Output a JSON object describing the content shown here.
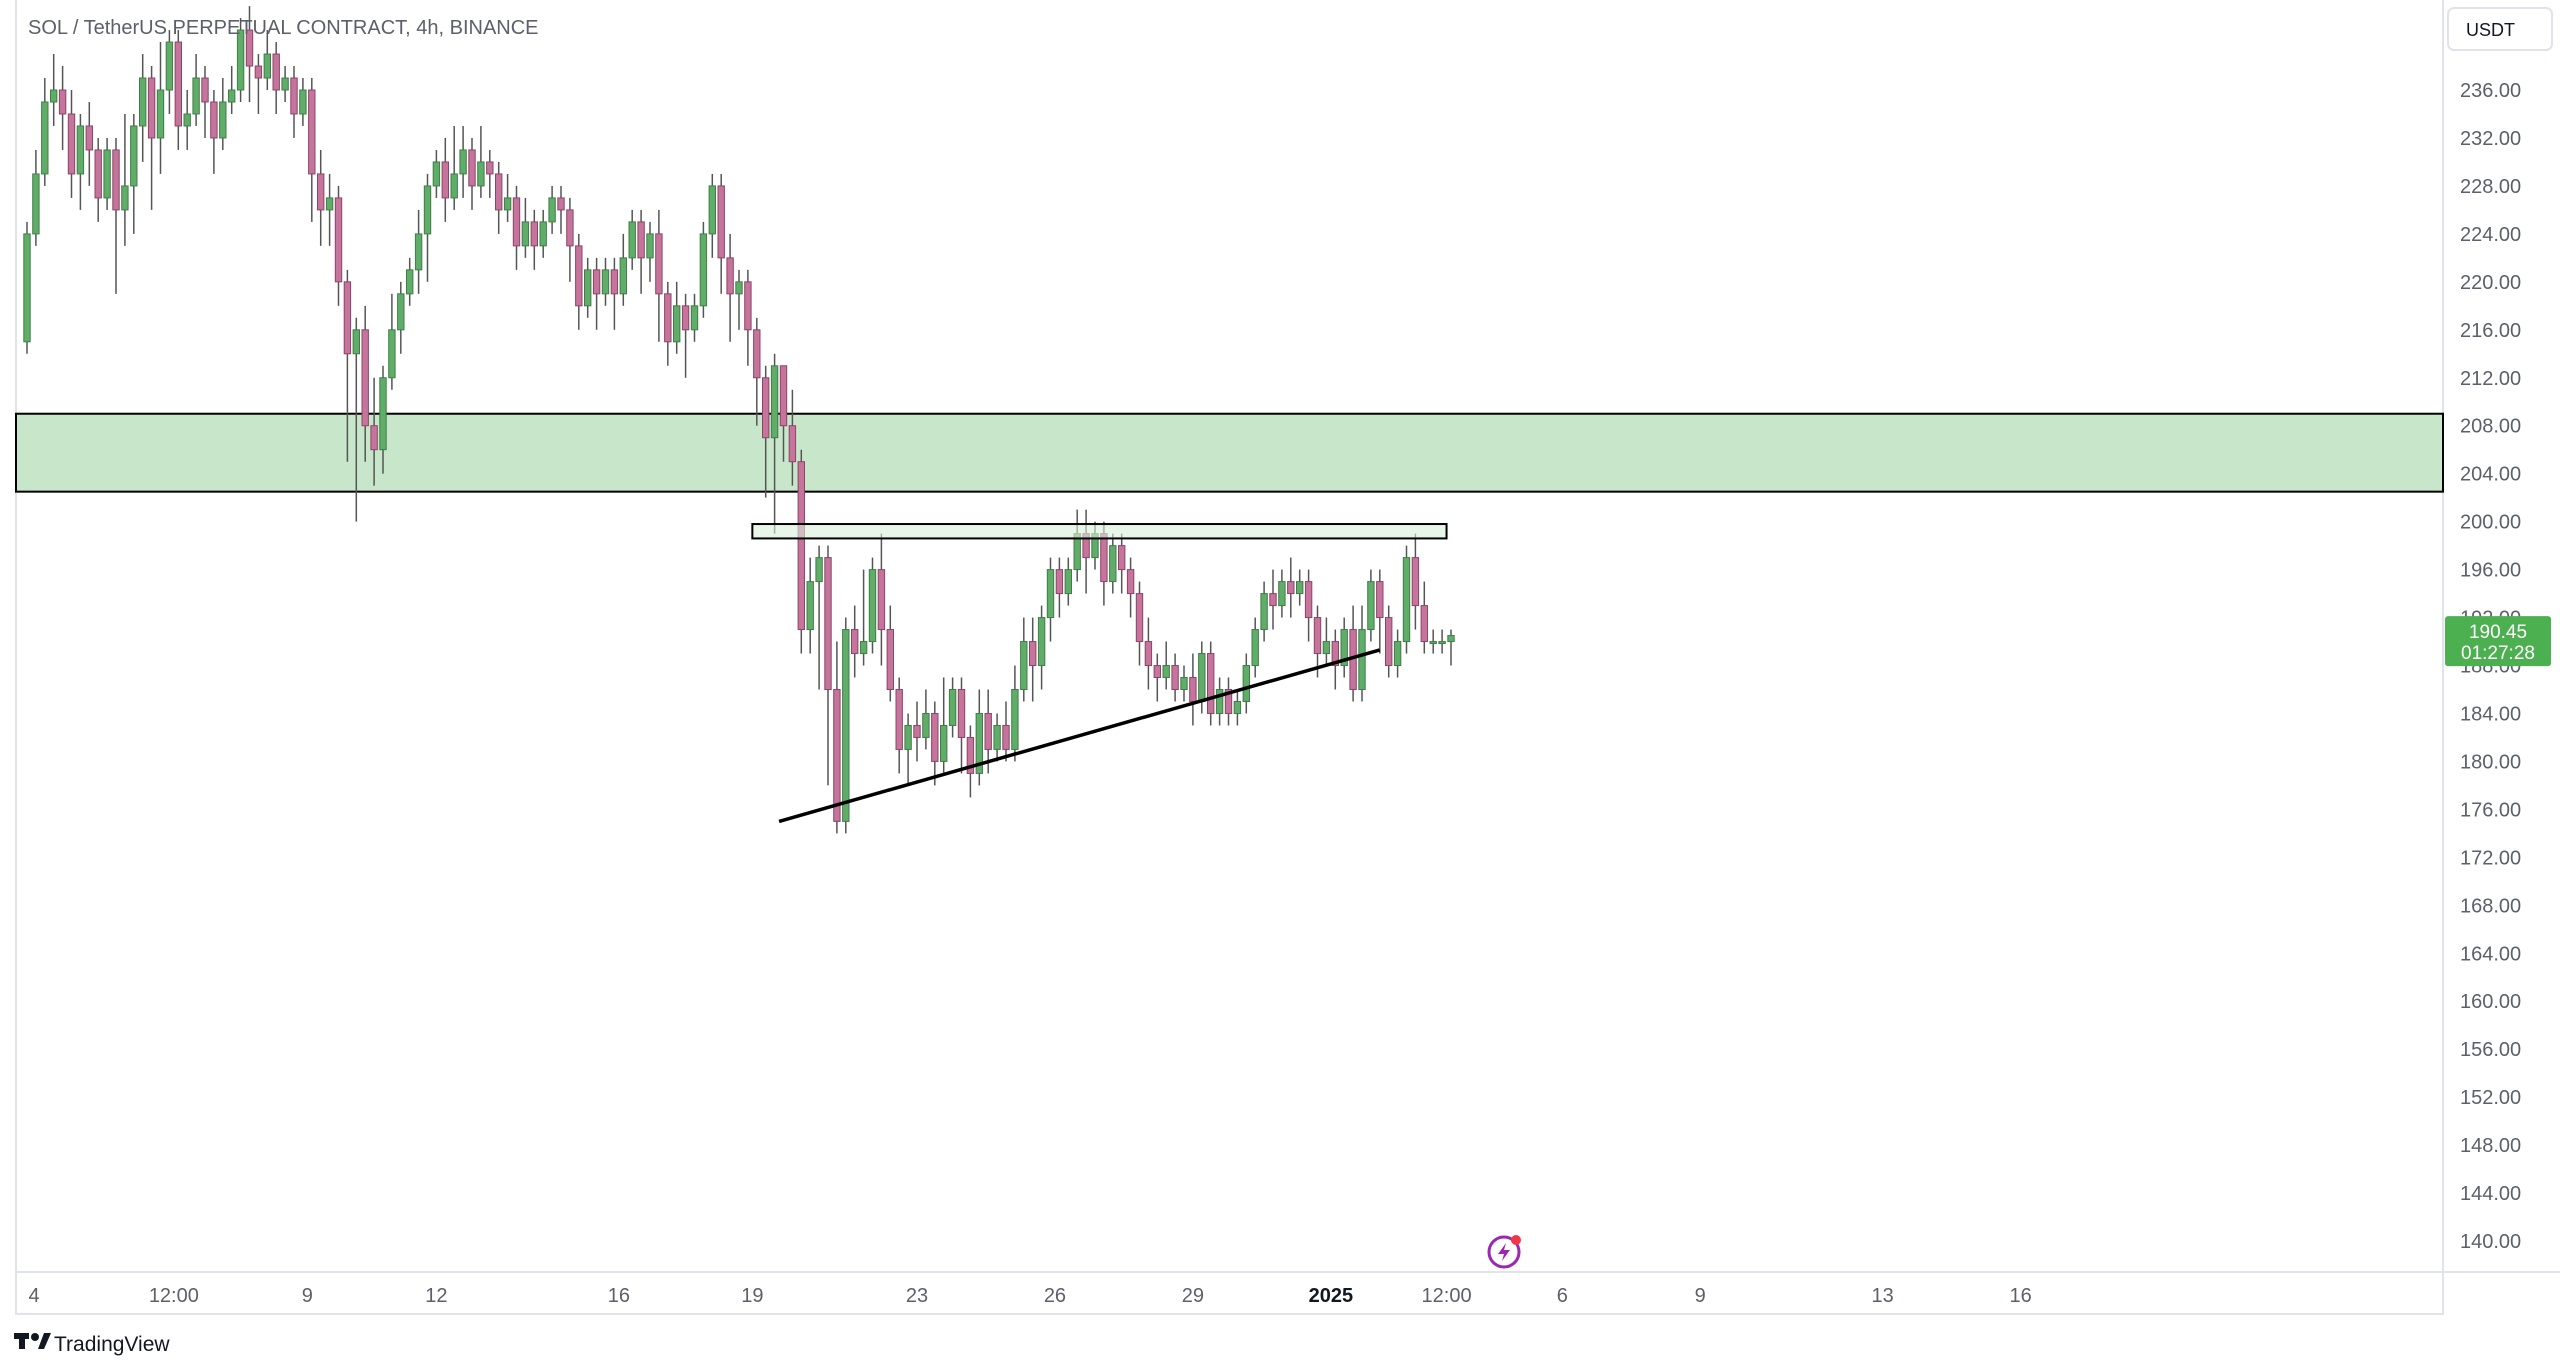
{
  "header": {
    "symbol_title": "SOL / TetherUS PERPETUAL CONTRACT, 4h, BINANCE"
  },
  "currency_button": {
    "label": "USDT"
  },
  "branding": {
    "text": "TradingView"
  },
  "last_price": {
    "value": "190.45",
    "countdown": "01:27:28",
    "price": 190.45
  },
  "colors": {
    "up": "#5fad68",
    "down": "#c5749c",
    "zone_fill": "#c8e6c9",
    "last_price_bg": "#4caf50",
    "trendline": "#000000"
  },
  "icons": {
    "bottom_center": "lightning-bolt-icon"
  },
  "chart_data": {
    "type": "candlestick",
    "ylim": [
      138,
      240
    ],
    "y_ticks": [
      "236.00",
      "232.00",
      "228.00",
      "224.00",
      "220.00",
      "216.00",
      "212.00",
      "208.00",
      "204.00",
      "200.00",
      "196.00",
      "192.00",
      "188.00",
      "184.00",
      "180.00",
      "176.00",
      "172.00",
      "168.00",
      "164.00",
      "160.00",
      "156.00",
      "152.00",
      "148.00",
      "144.00",
      "140.00"
    ],
    "x_labels": [
      {
        "label": "4",
        "t": 0.8
      },
      {
        "label": "12:00",
        "t": 16.5
      },
      {
        "label": "9",
        "t": 31.5
      },
      {
        "label": "12",
        "t": 46
      },
      {
        "label": "16",
        "t": 66.5
      },
      {
        "label": "19",
        "t": 81.5
      },
      {
        "label": "23",
        "t": 100
      },
      {
        "label": "26",
        "t": 115.5
      },
      {
        "label": "29",
        "t": 131
      },
      {
        "label": "2025",
        "t": 146.5,
        "bold": true
      },
      {
        "label": "12:00",
        "t": 159.5
      },
      {
        "label": "6",
        "t": 172.5
      },
      {
        "label": "9",
        "t": 188
      },
      {
        "label": "13",
        "t": 208.5
      },
      {
        "label": "16",
        "t": 224
      }
    ],
    "resistance_zone": [
      202.5,
      209
    ],
    "flat_box": {
      "t0": 81.5,
      "t1": 159.5,
      "low": 198.6,
      "high": 199.8
    },
    "trendline": {
      "t0": 84.5,
      "v0": 175,
      "t1": 152,
      "v1": 189.3
    },
    "candles": [
      [
        215,
        224,
        214,
        225
      ],
      [
        224,
        229,
        223,
        231
      ],
      [
        229,
        235,
        228,
        237
      ],
      [
        235,
        236,
        233,
        239
      ],
      [
        236,
        234,
        231,
        238
      ],
      [
        234,
        229,
        227,
        236
      ],
      [
        229,
        233,
        226,
        234
      ],
      [
        233,
        231,
        228,
        235
      ],
      [
        231,
        227,
        225,
        232
      ],
      [
        227,
        231,
        226,
        232
      ],
      [
        231,
        226,
        219,
        232
      ],
      [
        226,
        228,
        223,
        234
      ],
      [
        228,
        233,
        224,
        234
      ],
      [
        233,
        237,
        230,
        239
      ],
      [
        237,
        232,
        226,
        238
      ],
      [
        232,
        236,
        229,
        240
      ],
      [
        236,
        240,
        234,
        241
      ],
      [
        240,
        233,
        231,
        241
      ],
      [
        233,
        234,
        231,
        236
      ],
      [
        234,
        237,
        233,
        239
      ],
      [
        237,
        235,
        232,
        238
      ],
      [
        235,
        232,
        229,
        236
      ],
      [
        232,
        235,
        231,
        237
      ],
      [
        235,
        236,
        234,
        238
      ],
      [
        236,
        241,
        235,
        242
      ],
      [
        241,
        238,
        235,
        243
      ],
      [
        238,
        237,
        234,
        239
      ],
      [
        237,
        239,
        236,
        241
      ],
      [
        239,
        236,
        234,
        240
      ],
      [
        236,
        237,
        235,
        238
      ],
      [
        237,
        234,
        232,
        238
      ],
      [
        234,
        236,
        233,
        237
      ],
      [
        236,
        229,
        225,
        237
      ],
      [
        229,
        226,
        223,
        231
      ],
      [
        226,
        227,
        223,
        229
      ],
      [
        227,
        220,
        218,
        228
      ],
      [
        220,
        214,
        205,
        221
      ],
      [
        214,
        216,
        200,
        217
      ],
      [
        216,
        208,
        205,
        218
      ],
      [
        208,
        206,
        203,
        212
      ],
      [
        206,
        212,
        204,
        213
      ],
      [
        212,
        216,
        211,
        219
      ],
      [
        216,
        219,
        214,
        220
      ],
      [
        219,
        221,
        218,
        222
      ],
      [
        221,
        224,
        219,
        226
      ],
      [
        224,
        228,
        220,
        229
      ],
      [
        228,
        230,
        227,
        231
      ],
      [
        230,
        227,
        225,
        232
      ],
      [
        227,
        229,
        226,
        233
      ],
      [
        229,
        231,
        227,
        233
      ],
      [
        231,
        228,
        226,
        232
      ],
      [
        228,
        230,
        227,
        233
      ],
      [
        230,
        229,
        227,
        231
      ],
      [
        229,
        226,
        224,
        230
      ],
      [
        226,
        227,
        225,
        229
      ],
      [
        227,
        223,
        221,
        228
      ],
      [
        223,
        225,
        222,
        227
      ],
      [
        225,
        223,
        221,
        226
      ],
      [
        223,
        225,
        222,
        226
      ],
      [
        225,
        227,
        224,
        228
      ],
      [
        227,
        226,
        224,
        228
      ],
      [
        226,
        223,
        220,
        227
      ],
      [
        223,
        218,
        216,
        224
      ],
      [
        218,
        221,
        217,
        222
      ],
      [
        221,
        219,
        216,
        222
      ],
      [
        219,
        221,
        218,
        222
      ],
      [
        221,
        219,
        216,
        222
      ],
      [
        219,
        222,
        218,
        224
      ],
      [
        222,
        225,
        221,
        226
      ],
      [
        225,
        222,
        219,
        226
      ],
      [
        222,
        224,
        220,
        225
      ],
      [
        224,
        219,
        215,
        226
      ],
      [
        219,
        215,
        213,
        220
      ],
      [
        215,
        218,
        214,
        220
      ],
      [
        218,
        216,
        212,
        219
      ],
      [
        216,
        218,
        215,
        219
      ],
      [
        218,
        224,
        217,
        225
      ],
      [
        224,
        228,
        222,
        229
      ],
      [
        228,
        222,
        219,
        229
      ],
      [
        222,
        219,
        215,
        224
      ],
      [
        219,
        220,
        216,
        221
      ],
      [
        220,
        216,
        213,
        221
      ],
      [
        216,
        212,
        208,
        217
      ],
      [
        212,
        207,
        202,
        213
      ],
      [
        207,
        213,
        199,
        214
      ],
      [
        213,
        208,
        205,
        213
      ],
      [
        208,
        205,
        203,
        211
      ],
      [
        205,
        191,
        189,
        206
      ],
      [
        191,
        195,
        189,
        197
      ],
      [
        195,
        197,
        186,
        198
      ],
      [
        197,
        186,
        178,
        198
      ],
      [
        186,
        175,
        174,
        190
      ],
      [
        175,
        191,
        174,
        192
      ],
      [
        191,
        189,
        187,
        193
      ],
      [
        189,
        190,
        188,
        196
      ],
      [
        190,
        196,
        189,
        197
      ],
      [
        196,
        191,
        188,
        199
      ],
      [
        191,
        186,
        185,
        193
      ],
      [
        186,
        181,
        179,
        187
      ],
      [
        181,
        183,
        178,
        184
      ],
      [
        183,
        182,
        180,
        185
      ],
      [
        182,
        184,
        181,
        186
      ],
      [
        184,
        180,
        178,
        185
      ],
      [
        180,
        183,
        179,
        187
      ],
      [
        183,
        186,
        182,
        187
      ],
      [
        186,
        182,
        179,
        187
      ],
      [
        182,
        179,
        177,
        183
      ],
      [
        179,
        184,
        178,
        186
      ],
      [
        184,
        181,
        179,
        186
      ],
      [
        181,
        183,
        180,
        184
      ],
      [
        183,
        181,
        180,
        185
      ],
      [
        181,
        186,
        180,
        188
      ],
      [
        186,
        190,
        185,
        192
      ],
      [
        190,
        188,
        185,
        192
      ],
      [
        188,
        192,
        186,
        193
      ],
      [
        192,
        196,
        190,
        197
      ],
      [
        196,
        194,
        192,
        197
      ],
      [
        194,
        196,
        193,
        197
      ],
      [
        196,
        199,
        195,
        201
      ],
      [
        199,
        197,
        194,
        201
      ],
      [
        197,
        199,
        196,
        200
      ],
      [
        199,
        195,
        193,
        200
      ],
      [
        195,
        198,
        194,
        199
      ],
      [
        198,
        196,
        194,
        199
      ],
      [
        196,
        194,
        192,
        197
      ],
      [
        194,
        190,
        188,
        195
      ],
      [
        190,
        188,
        186,
        192
      ],
      [
        188,
        187,
        185,
        189
      ],
      [
        187,
        188,
        186,
        190
      ],
      [
        188,
        186,
        185,
        189
      ],
      [
        186,
        187,
        185,
        188
      ],
      [
        187,
        185,
        183,
        189
      ],
      [
        185,
        189,
        184,
        190
      ],
      [
        189,
        184,
        183,
        190
      ],
      [
        184,
        186,
        183,
        187
      ],
      [
        186,
        184,
        183,
        187
      ],
      [
        184,
        185,
        183,
        186
      ],
      [
        185,
        188,
        184,
        189
      ],
      [
        188,
        191,
        187,
        192
      ],
      [
        191,
        194,
        190,
        195
      ],
      [
        194,
        193,
        191,
        196
      ],
      [
        193,
        195,
        192,
        196
      ],
      [
        195,
        194,
        192,
        197
      ],
      [
        194,
        195,
        193,
        196
      ],
      [
        195,
        192,
        190,
        196
      ],
      [
        192,
        189,
        187,
        193
      ],
      [
        189,
        190,
        188,
        192
      ],
      [
        190,
        188,
        186,
        191
      ],
      [
        188,
        191,
        187,
        192
      ],
      [
        191,
        186,
        185,
        193
      ],
      [
        186,
        191,
        185,
        193
      ],
      [
        191,
        195,
        190,
        196
      ],
      [
        195,
        192,
        189,
        196
      ],
      [
        192,
        188,
        187,
        193
      ],
      [
        188,
        190,
        187,
        191
      ],
      [
        190,
        197,
        189,
        198
      ],
      [
        197,
        193,
        191,
        199
      ],
      [
        193,
        190,
        189,
        195
      ],
      [
        190,
        190,
        189,
        191
      ],
      [
        190,
        190,
        189,
        191
      ],
      [
        190,
        190.5,
        188,
        191
      ]
    ]
  }
}
